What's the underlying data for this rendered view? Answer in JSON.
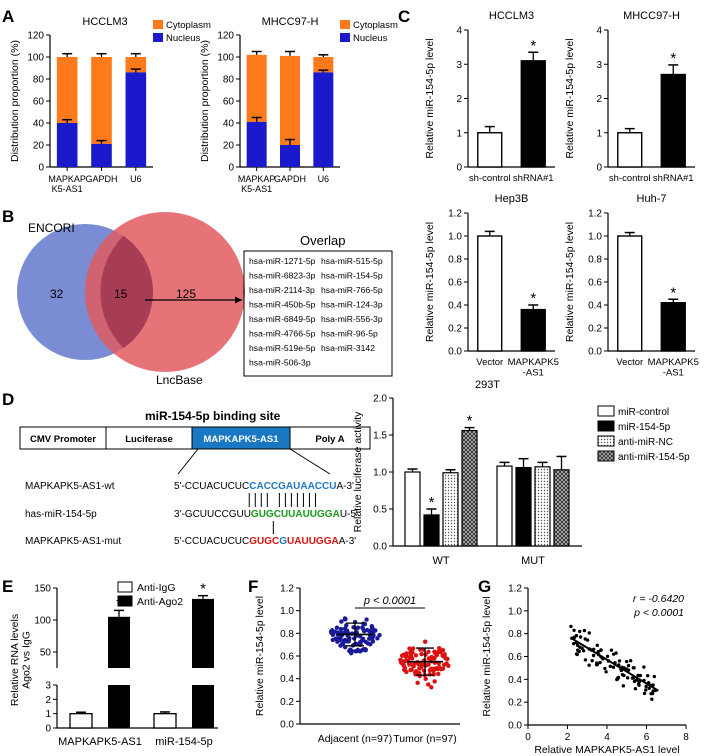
{
  "panels": {
    "A": "A",
    "B": "B",
    "C": "C",
    "D": "D",
    "E": "E",
    "F": "F",
    "G": "G"
  },
  "chart_data": [
    {
      "id": "A1",
      "type": "bar",
      "stacked": true,
      "title": "HCCLM3",
      "ylabel": "Distribution proportion (%)",
      "ylim": [
        0,
        120
      ],
      "yticks": [
        "0",
        "20",
        "40",
        "60",
        "80",
        "100",
        "120"
      ],
      "categories": [
        "MAPKAP\nK5-AS1",
        "GAPDH",
        "U6"
      ],
      "series": [
        {
          "name": "Nucleus",
          "color": "#1a1acc",
          "values": [
            40,
            21,
            86
          ],
          "errors": [
            3,
            3,
            3
          ]
        },
        {
          "name": "Cytoplasm",
          "color": "#ff7a1a",
          "values": [
            60,
            79,
            14
          ],
          "errors": [
            3,
            3,
            3
          ]
        }
      ],
      "legend": [
        "Cytoplasm",
        "Nucleus"
      ]
    },
    {
      "id": "A2",
      "type": "bar",
      "stacked": true,
      "title": "MHCC97-H",
      "ylabel": "Distribution proportion (%)",
      "ylim": [
        0,
        120
      ],
      "yticks": [
        "0",
        "20",
        "40",
        "60",
        "80",
        "100",
        "120"
      ],
      "categories": [
        "MAPKAP\nK5-AS1",
        "GAPDH",
        "U6"
      ],
      "series": [
        {
          "name": "Nucleus",
          "color": "#1a1acc",
          "values": [
            41,
            20,
            86
          ],
          "errors": [
            4,
            5,
            2
          ]
        },
        {
          "name": "Cytoplasm",
          "color": "#ff7a1a",
          "values": [
            61,
            81,
            14
          ],
          "errors": [
            3,
            4,
            2
          ]
        }
      ],
      "legend": [
        "Cytoplasm",
        "Nucleus"
      ]
    },
    {
      "id": "C1",
      "type": "bar",
      "title": "HCCLM3",
      "ylabel": "Relative miR-154-5p level",
      "ylim": [
        0,
        4
      ],
      "yticks": [
        "0",
        "1",
        "2",
        "3",
        "4"
      ],
      "categories": [
        "sh-control",
        "shRNA#1"
      ],
      "values": [
        1.0,
        3.1
      ],
      "errors": [
        0.18,
        0.25
      ],
      "fills": [
        "#ffffff",
        "#000000"
      ],
      "stars": [
        "",
        "*"
      ]
    },
    {
      "id": "C2",
      "type": "bar",
      "title": "MHCC97-H",
      "ylabel": "Relative miR-154-5p level",
      "ylim": [
        0,
        4
      ],
      "yticks": [
        "0",
        "1",
        "2",
        "3",
        "4"
      ],
      "categories": [
        "sh-control",
        "shRNA#1"
      ],
      "values": [
        1.0,
        2.7
      ],
      "errors": [
        0.12,
        0.28
      ],
      "fills": [
        "#ffffff",
        "#000000"
      ],
      "stars": [
        "",
        "*"
      ]
    },
    {
      "id": "C3",
      "type": "bar",
      "title": "Hep3B",
      "ylabel": "Relative miR-154-5p level",
      "ylim": [
        0,
        1.2
      ],
      "yticks": [
        "0.0",
        "0.2",
        "0.4",
        "0.6",
        "0.8",
        "1.0",
        "1.2"
      ],
      "categories": [
        "Vector",
        "MAPKAPK5\n-AS1"
      ],
      "values": [
        1.0,
        0.36
      ],
      "errors": [
        0.04,
        0.04
      ],
      "fills": [
        "#ffffff",
        "#000000"
      ],
      "stars": [
        "",
        "*"
      ]
    },
    {
      "id": "C4",
      "type": "bar",
      "title": "Huh-7",
      "ylabel": "Relative miR-154-5p level",
      "ylim": [
        0,
        1.2
      ],
      "yticks": [
        "0.0",
        "0.2",
        "0.4",
        "0.6",
        "0.8",
        "1.0",
        "1.2"
      ],
      "categories": [
        "Vector",
        "MAPKAPK5\n-AS1"
      ],
      "values": [
        1.0,
        0.42
      ],
      "errors": [
        0.03,
        0.03
      ],
      "fills": [
        "#ffffff",
        "#000000"
      ],
      "stars": [
        "",
        "*"
      ]
    },
    {
      "id": "D",
      "type": "bar",
      "title": "293T",
      "ylabel": "Relative luciferase activity",
      "ylim": [
        0,
        2.0
      ],
      "yticks": [
        "0.0",
        "0.5",
        "1.0",
        "1.5",
        "2.0"
      ],
      "categories": [
        "WT",
        "MUT"
      ],
      "series": [
        {
          "name": "miR-control",
          "values": [
            1.0,
            1.08
          ],
          "errors": [
            0.04,
            0.05
          ]
        },
        {
          "name": "miR-154-5p",
          "values": [
            0.42,
            1.06
          ],
          "errors": [
            0.08,
            0.12
          ]
        },
        {
          "name": "anti-miR-NC",
          "values": [
            0.99,
            1.07
          ],
          "errors": [
            0.04,
            0.06
          ]
        },
        {
          "name": "anti-miR-154-5p",
          "values": [
            1.56,
            1.03
          ],
          "errors": [
            0.04,
            0.18
          ]
        }
      ],
      "stars": [
        [
          "",
          "*",
          "",
          "*"
        ],
        [
          "",
          "",
          "",
          ""
        ]
      ]
    },
    {
      "id": "E",
      "type": "bar",
      "broken_axis": true,
      "ylabel": "Relative RNA levels\nAgo2 vs IgG",
      "yticks_top": [
        "50",
        "100",
        "150"
      ],
      "yticks_bottom": [
        "0",
        "1",
        "2",
        "3"
      ],
      "categories": [
        "MAPKAPK5-AS1",
        "miR-154-5p"
      ],
      "series": [
        {
          "name": "Anti-IgG",
          "values": [
            1.0,
            1.0
          ],
          "errors": [
            0.1,
            0.12
          ]
        },
        {
          "name": "Anti-Ago2",
          "values": [
            105,
            133
          ],
          "errors": [
            10,
            5
          ]
        }
      ],
      "stars": [
        "*",
        "*"
      ]
    },
    {
      "id": "F",
      "type": "scatter",
      "ylabel": "Relative miR-154-5p level",
      "ylim": [
        0,
        1.2
      ],
      "yticks": [
        "0.0",
        "0.2",
        "0.4",
        "0.6",
        "0.8",
        "1.0",
        "1.2"
      ],
      "categories": [
        "Adjacent (n=97)",
        "Tumor (n=97)"
      ],
      "colors": [
        "#1a1a99",
        "#dd1111"
      ],
      "groups": [
        {
          "n": 97,
          "mean": 0.79,
          "sd": 0.1
        },
        {
          "n": 97,
          "mean": 0.55,
          "sd": 0.12
        }
      ],
      "pvalue": "p < 0.0001"
    },
    {
      "id": "G",
      "type": "scatter",
      "xlabel": "Relative MAPKAPK5-AS1 level",
      "ylabel": "Relative miR-154-5p level",
      "xlim": [
        0,
        8
      ],
      "ylim": [
        0,
        1.2
      ],
      "xticks": [
        "0",
        "2",
        "4",
        "6",
        "8"
      ],
      "yticks": [
        "0.0",
        "0.2",
        "0.4",
        "0.6",
        "0.8",
        "1.0",
        "1.2"
      ],
      "n": 97,
      "r": "r = -0.6420",
      "pvalue": "p < 0.0001",
      "fit": [
        [
          2.2,
          0.76
        ],
        [
          6.6,
          0.3
        ]
      ]
    }
  ],
  "venn": {
    "left_label": "ENCORI",
    "right_label": "LncBase",
    "left_only": "32",
    "overlap": "15",
    "right_only": "125",
    "overlap_title": "Overlap",
    "mirnas_col1": [
      "hsa-miR-1271-5p",
      "hsa-miR-6823-3p",
      "hsa-miR-2114-3p",
      "hsa-miR-450b-5p",
      "hsa-miR-6849-5p",
      "hsa-miR-4766-5p",
      "hsa-miR-519e-5p",
      "hsa-miR-506-3p"
    ],
    "mirnas_col2": [
      "hsa-miR-515-5p",
      "hsa-miR-154-5p",
      "hsa-miR-766-5p",
      "hsa-miR-124-3p",
      "hsa-miR-556-3p",
      "hsa-miR-96-5p",
      "hsa-miR-3142"
    ]
  },
  "construct": {
    "title": "miR-154-5p binding site",
    "boxes": [
      "CMV Promoter",
      "Luciferase",
      "MAPKAPK5-AS1",
      "Poly A"
    ],
    "rows": [
      {
        "label": "MAPKAPK5-AS1-wt",
        "seq_a": "5'-CCUACUCUC",
        "seq_b": "CACCGAUAACCU",
        "seq_c": "A-3'"
      },
      {
        "label": "has-miR-154-5p",
        "seq_a": "3'-GCUUCCGUU",
        "seq_b": "GUGCUUAUUGGA",
        "seq_c": "U-5'"
      },
      {
        "label": "MAPKAPK5-AS1-mut",
        "seq_a": "5'-CCUACUCUC",
        "seq_b": "GUGCGUAUUGGA",
        "seq_c": "A-3'"
      }
    ],
    "colors": {
      "wt": "#1f77c4",
      "mir": "#1a9a1a",
      "mut": "#dd1111",
      "mut_mid": "#1f77c4",
      "box": "#1a78c2"
    }
  }
}
